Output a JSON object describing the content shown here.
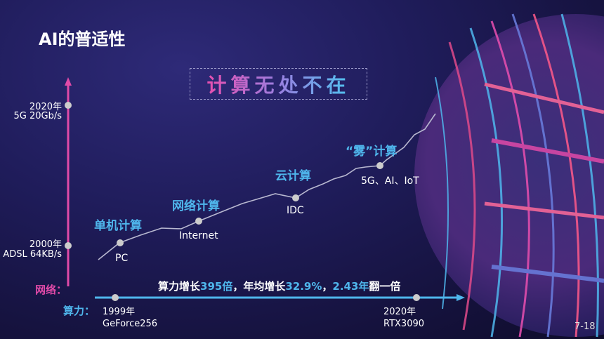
{
  "title": "AI的普适性",
  "banner": "计算无处不在",
  "network_axis": {
    "label": "网络：",
    "top": {
      "year": "2020年",
      "desc": "5G 20Gb/s"
    },
    "bottom": {
      "year": "2000年",
      "desc": "ADSL 64KB/s"
    },
    "color": "#e04aa8"
  },
  "stages": [
    {
      "name": "单机计算",
      "milestone": "PC"
    },
    {
      "name": "网络计算",
      "milestone": "Internet"
    },
    {
      "name": "云计算",
      "milestone": "IDC"
    },
    {
      "name": "“雾”计算",
      "milestone": "5G、AI、IoT"
    }
  ],
  "compute_axis": {
    "label": "算力：",
    "start": {
      "year": "1999年",
      "desc": "GeForce256"
    },
    "end": {
      "year": "2020年",
      "desc": "RTX3090"
    },
    "color": "#4fb6ec"
  },
  "summary": {
    "p1": "算力增长",
    "v1": "395倍",
    "p2": "，年均增长",
    "v2": "32.9%",
    "p3": "，",
    "v3": "2.43年",
    "p4": "翻一倍"
  },
  "page_number": "7-18"
}
